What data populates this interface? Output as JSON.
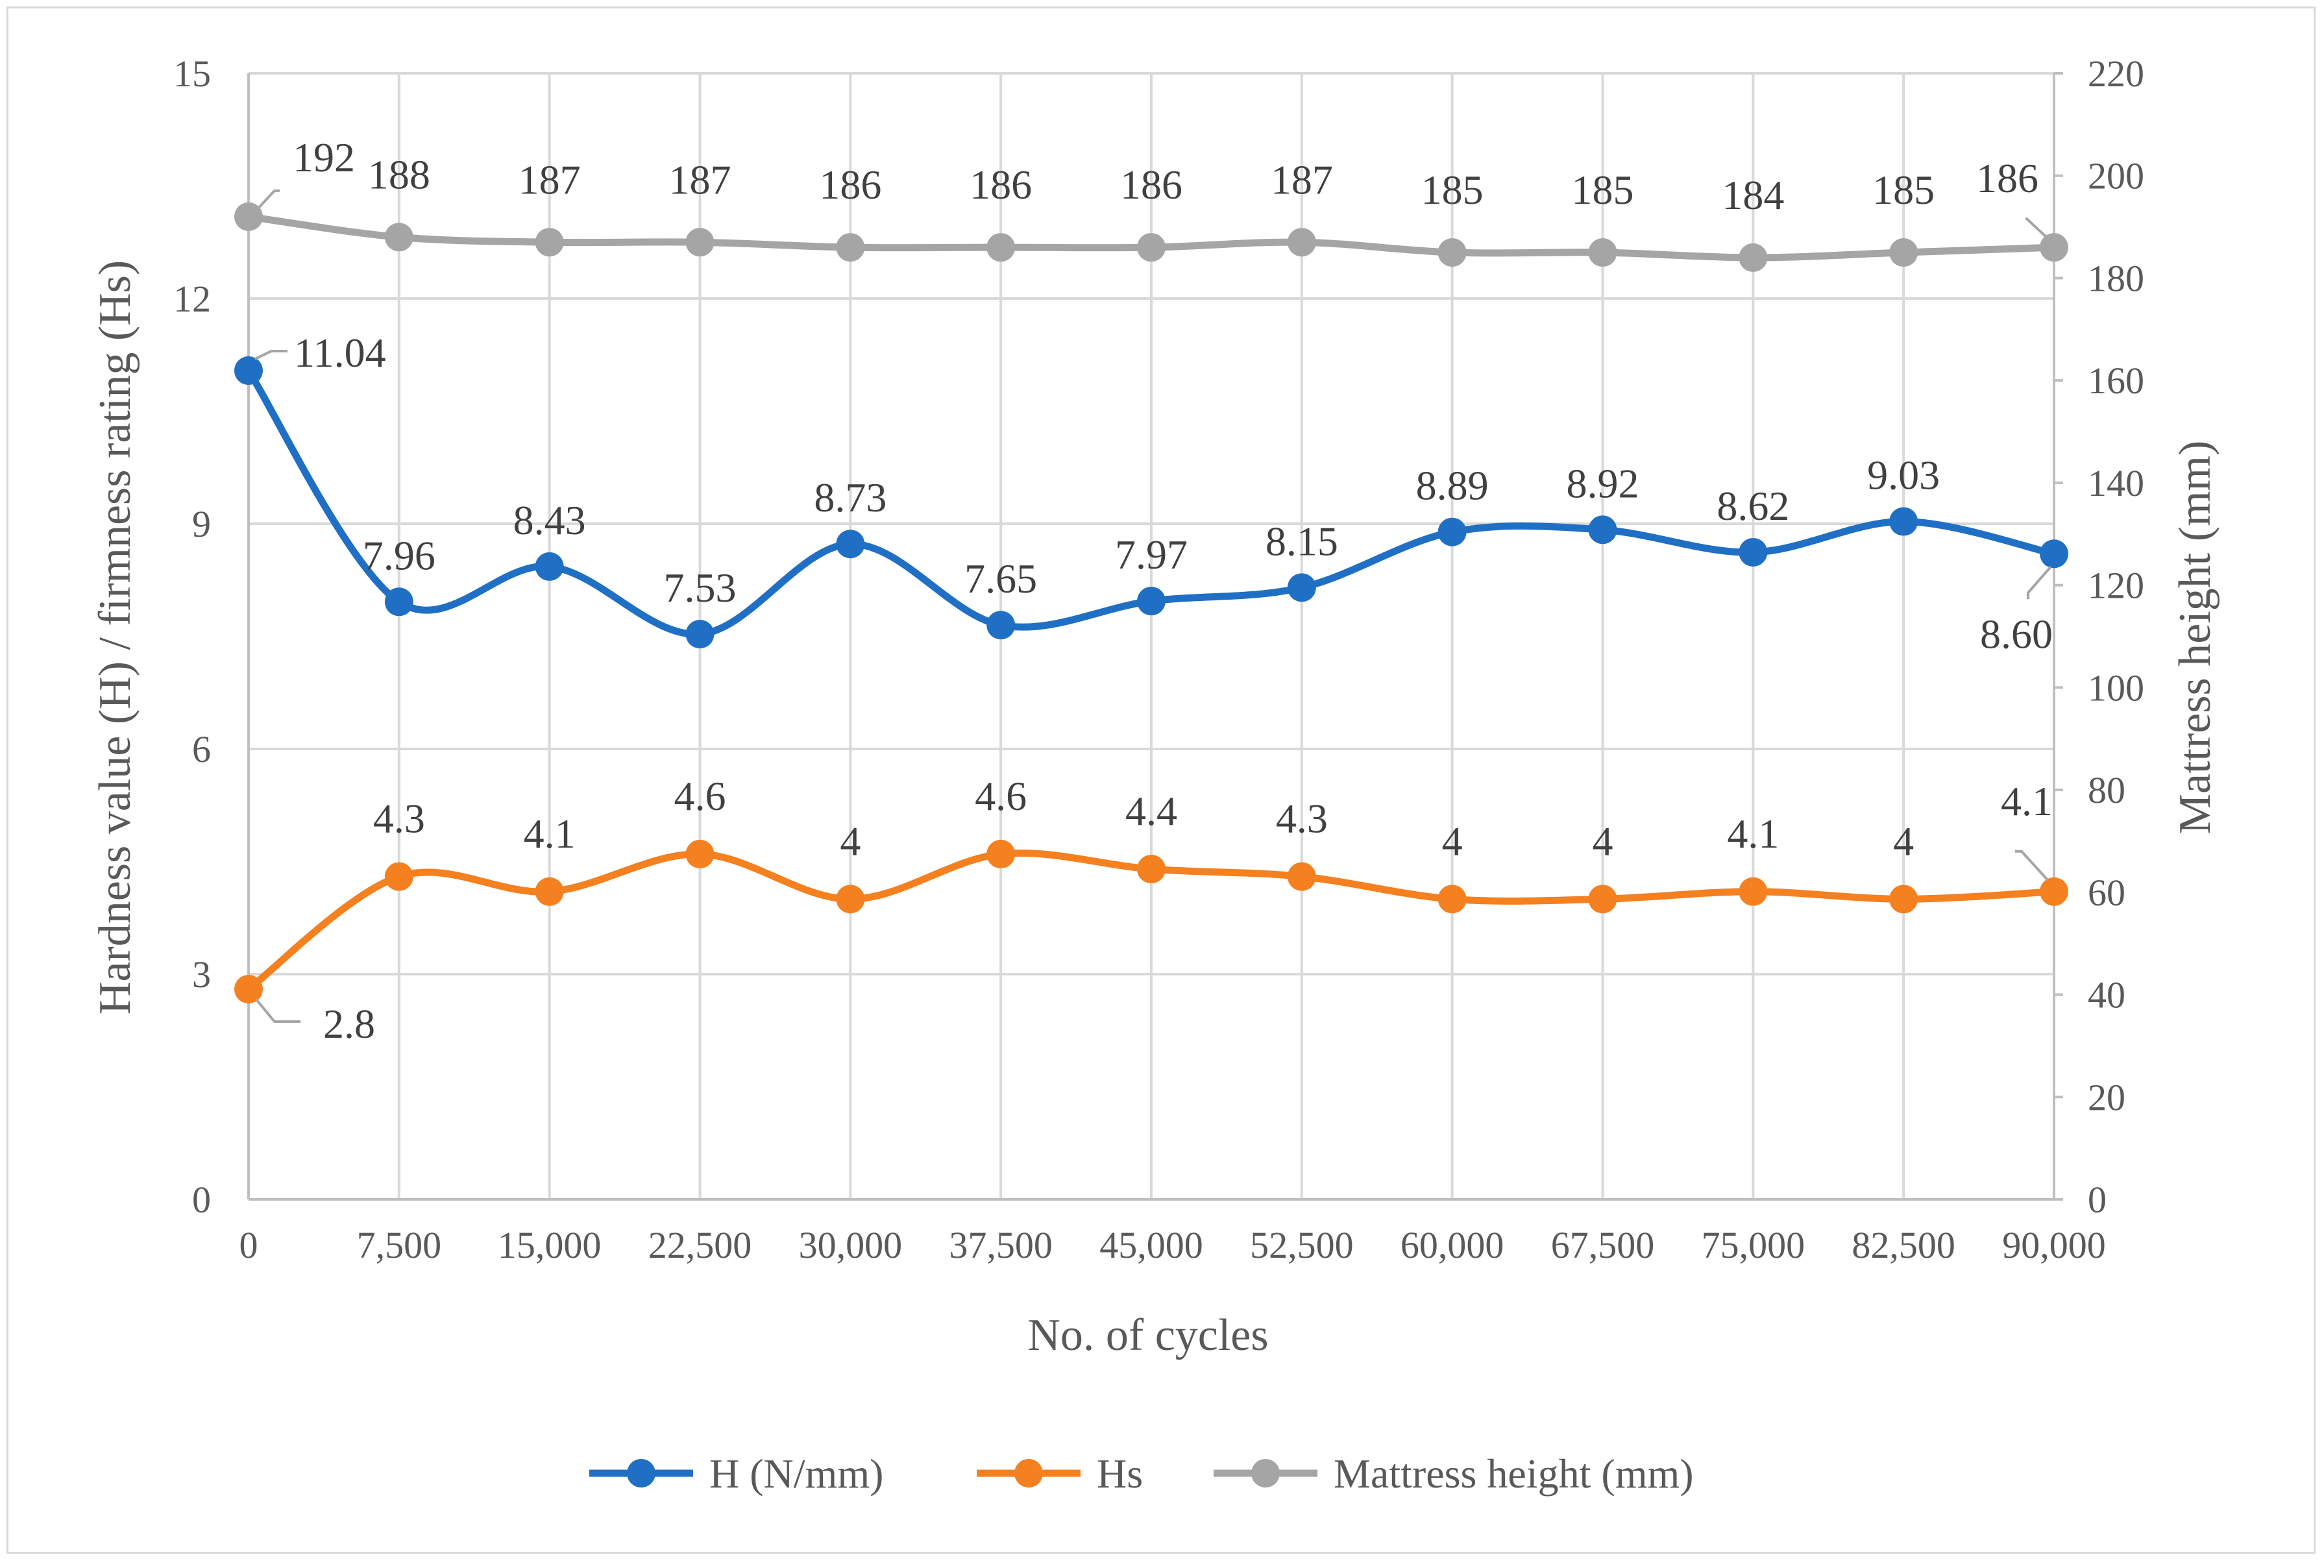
{
  "chart_data": {
    "type": "line",
    "title": "",
    "xlabel": "No. of cycles",
    "ylabel": "Hardness value (H) / firmness rating (Hs)",
    "y2label": "Mattress height (mm)",
    "categories": [
      "0",
      "7,500",
      "15,000",
      "22,500",
      "30,000",
      "37,500",
      "45,000",
      "52,500",
      "60,000",
      "67,500",
      "75,000",
      "82,500",
      "90,000"
    ],
    "ylim": [
      0,
      15
    ],
    "yticks": [
      "0",
      "3",
      "6",
      "9",
      "12",
      "15"
    ],
    "y2lim": [
      0,
      220
    ],
    "y2ticks": [
      "0",
      "20",
      "40",
      "60",
      "80",
      "100",
      "120",
      "140",
      "160",
      "180",
      "200",
      "220"
    ],
    "grid": true,
    "legend_position": "bottom",
    "series": [
      {
        "name": "H (N/mm)",
        "axis": "left",
        "color": "#1f6fc5",
        "values": [
          11.04,
          7.96,
          8.43,
          7.53,
          8.73,
          7.65,
          7.97,
          8.15,
          8.89,
          8.92,
          8.62,
          9.03,
          8.6
        ],
        "labels": [
          "11.04",
          "7.96",
          "8.43",
          "7.53",
          "8.73",
          "7.65",
          "7.97",
          "8.15",
          "8.89",
          "8.92",
          "8.62",
          "9.03",
          "8.60"
        ]
      },
      {
        "name": "Hs",
        "axis": "left",
        "color": "#f5801f",
        "values": [
          2.8,
          4.3,
          4.1,
          4.6,
          4,
          4.6,
          4.4,
          4.3,
          4,
          4,
          4.1,
          4,
          4.1
        ],
        "labels": [
          "2.8",
          "4.3",
          "4.1",
          "4.6",
          "4",
          "4.6",
          "4.4",
          "4.3",
          "4",
          "4",
          "4.1",
          "4",
          "4.1"
        ]
      },
      {
        "name": "Mattress height (mm)",
        "axis": "right",
        "color": "#a5a5a5",
        "values": [
          192,
          188,
          187,
          187,
          186,
          186,
          186,
          187,
          185,
          185,
          184,
          185,
          186
        ],
        "labels": [
          "192",
          "188",
          "187",
          "187",
          "186",
          "186",
          "186",
          "187",
          "185",
          "185",
          "184",
          "185",
          "186"
        ]
      }
    ]
  }
}
